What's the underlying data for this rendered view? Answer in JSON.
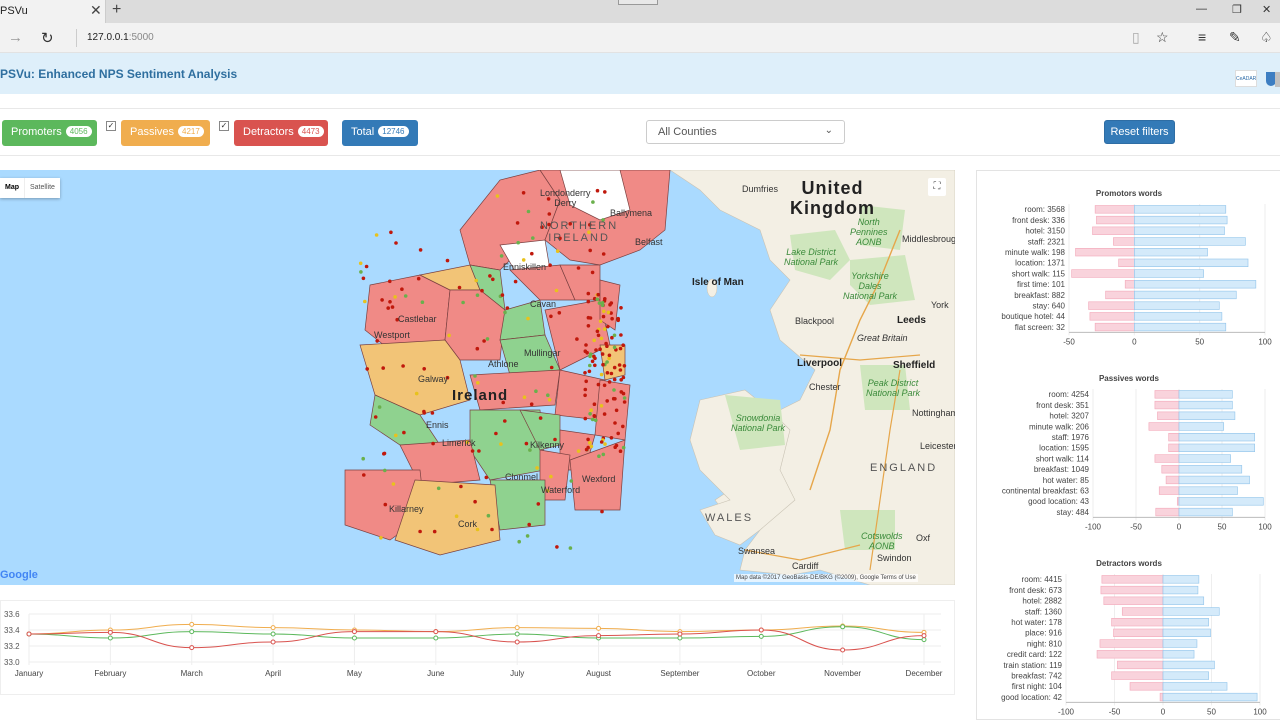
{
  "browser": {
    "tab_title": "PSVu",
    "url_host": "127.0.0.1",
    "url_port": ":5000"
  },
  "app": {
    "title": "PSVu: Enhanced NPS Sentiment Analysis",
    "logo_text": "CeADAR"
  },
  "filters": {
    "promoters": {
      "label": "Promoters",
      "count": "4056"
    },
    "passives": {
      "label": "Passives",
      "count": "4217"
    },
    "detractors": {
      "label": "Detractors",
      "count": "4473"
    },
    "total": {
      "label": "Total",
      "count": "12746"
    },
    "county_select": "All Counties",
    "reset_label": "Reset filters"
  },
  "map": {
    "type_map": "Map",
    "type_satellite": "Satellite",
    "attribution": "Map data ©2017 GeoBasis-DE/BKG (©2009), Google   Terms of Use",
    "google": "Google",
    "labels": {
      "united_kingdom_1": "United",
      "united_kingdom_2": "Kingdom",
      "northern_ireland_1": "NORTHERN",
      "northern_ireland_2": "IRELAND",
      "ireland": "Ireland",
      "isle_of_man": "Isle of Man",
      "england": "ENGLAND",
      "wales": "WALES",
      "dumfries": "Dumfries",
      "lake_district": "Lake District\nNational Park",
      "yorkshire_dales": "Yorkshire\nDales\nNational Park",
      "north_pennines": "North\nPennines\nAONB",
      "blackpool": "Blackpool",
      "leeds": "Leeds",
      "liverpool": "Liverpool",
      "sheffield": "Sheffield",
      "manchester": "Great Britain",
      "york": "York",
      "middlesbrough": "Middlesbrough",
      "peak_district": "Peak District\nNational Park",
      "snowdonia": "Snowdonia\nNational Park",
      "chester": "Chester",
      "leicester": "Leicester",
      "nottingham": "Nottingham",
      "swansea": "Swansea",
      "cardiff": "Cardiff",
      "swindon": "Swindon",
      "cotswolds": "Cotswolds\nAONB",
      "derry": "Londonderry\nDerry",
      "belfast": "Belfast",
      "ballymena": "Ballymena",
      "enniskillen": "Enniskillen",
      "castlebar": "Castlebar",
      "westport": "Westport",
      "galway": "Galway",
      "athlone": "Athlone",
      "mullingar": "Mullingar",
      "ennis": "Ennis",
      "limerick": "Limerick",
      "clonmel": "Clonmel",
      "waterford": "Waterford",
      "wexford": "Wexford",
      "kilkenny": "Kilkenny",
      "killarney": "Killarney",
      "cork": "Cork",
      "cavan": "Cavan",
      "oxford": "Oxf"
    }
  },
  "colors": {
    "promoters": "#5cb85c",
    "passives": "#f0ad4e",
    "detractors": "#d9534f",
    "total": "#337ab7",
    "neg_bar": "#f9d3dc",
    "pos_bar": "#d4eafa"
  },
  "timeline_chart": {
    "type": "line",
    "x": [
      "January",
      "February",
      "March",
      "April",
      "May",
      "June",
      "July",
      "August",
      "September",
      "October",
      "November",
      "December"
    ],
    "ylim": [
      33.0,
      33.6
    ],
    "yticks": [
      "33.6",
      "33.4",
      "33.2",
      "33.0"
    ],
    "series": [
      {
        "color": "#f0ad4e",
        "values": [
          33.35,
          33.4,
          33.47,
          33.43,
          33.4,
          33.38,
          33.43,
          33.42,
          33.38,
          33.4,
          33.45,
          33.37
        ]
      },
      {
        "color": "#5cb85c",
        "values": [
          33.35,
          33.3,
          33.38,
          33.35,
          33.3,
          33.3,
          33.35,
          33.3,
          33.3,
          33.32,
          33.44,
          33.28
        ]
      },
      {
        "color": "#d9534f",
        "values": [
          33.35,
          33.37,
          33.18,
          33.25,
          33.38,
          33.38,
          33.25,
          33.33,
          33.35,
          33.4,
          33.15,
          33.33
        ]
      }
    ]
  },
  "chart_data": [
    {
      "type": "bar",
      "title": "Promotors words",
      "categories": [
        "room: 3568",
        "front desk: 336",
        "hotel: 3150",
        "staff: 2321",
        "minute walk: 198",
        "location: 1371",
        "short walk: 115",
        "first time: 101",
        "breakfast: 882",
        "stay: 640",
        "boutique hotel: 44",
        "flat screen: 32"
      ],
      "series": [
        {
          "values": [
            -30,
            -29,
            -32,
            -16,
            -45,
            -12,
            -48,
            -7,
            -22,
            -35,
            -34,
            -30
          ]
        },
        {
          "values": [
            70,
            71,
            69,
            85,
            56,
            87,
            53,
            93,
            78,
            65,
            67,
            70
          ]
        }
      ],
      "xlim": [
        -50,
        100
      ],
      "xticks": [
        -50,
        0,
        50,
        100
      ]
    },
    {
      "type": "bar",
      "title": "Passives words",
      "categories": [
        "room: 4254",
        "front desk: 351",
        "hotel: 3207",
        "minute walk: 206",
        "staff: 1976",
        "location: 1595",
        "short walk: 114",
        "breakfast: 1049",
        "hot water: 85",
        "continental breakfast: 63",
        "good location: 43",
        "stay: 484"
      ],
      "series": [
        {
          "values": [
            -28,
            -28,
            -25,
            -35,
            -12,
            -12,
            -28,
            -20,
            -15,
            -23,
            -2,
            -27
          ]
        },
        {
          "values": [
            62,
            62,
            65,
            52,
            88,
            88,
            60,
            73,
            82,
            68,
            98,
            62
          ]
        }
      ],
      "xlim": [
        -100,
        100
      ],
      "xticks": [
        -100,
        -50,
        0,
        50,
        100
      ]
    },
    {
      "type": "bar",
      "title": "Detractors words",
      "categories": [
        "room: 4415",
        "front desk: 673",
        "hotel: 2882",
        "staff: 1360",
        "hot water: 178",
        "place: 916",
        "night: 810",
        "credit card: 122",
        "train station: 119",
        "breakfast: 742",
        "first night: 104",
        "good location: 42"
      ],
      "series": [
        {
          "values": [
            -63,
            -64,
            -61,
            -42,
            -53,
            -51,
            -65,
            -68,
            -47,
            -53,
            -34,
            -3
          ]
        },
        {
          "values": [
            37,
            36,
            42,
            58,
            47,
            49,
            35,
            32,
            53,
            47,
            66,
            97
          ]
        }
      ],
      "xlim": [
        -100,
        100
      ],
      "xticks": [
        -100,
        -50,
        0,
        50,
        100
      ]
    }
  ]
}
